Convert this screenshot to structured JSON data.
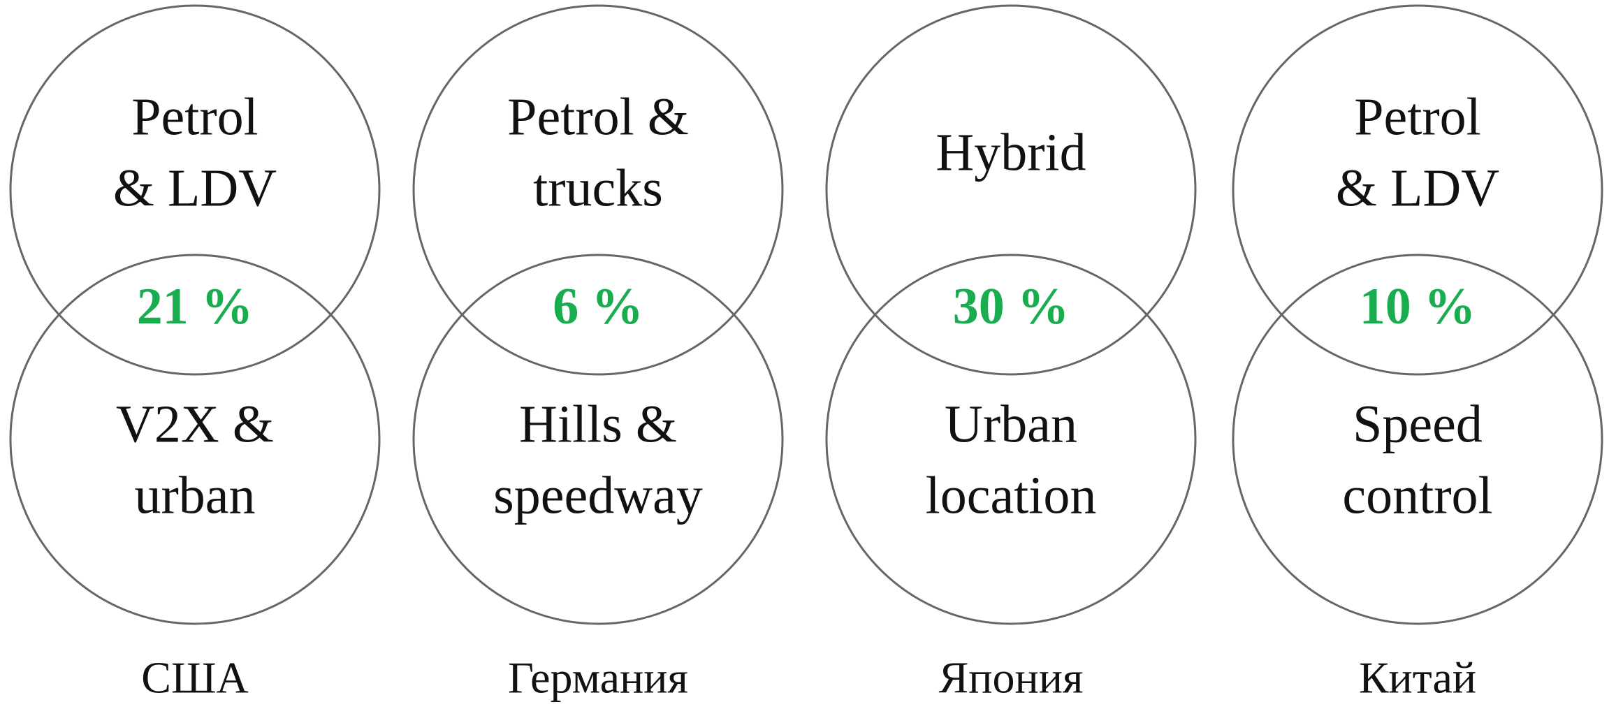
{
  "groups": [
    {
      "top": [
        "Petrol",
        "& LDV"
      ],
      "overlap": "21 %",
      "bottom": [
        "V2X &",
        "urban"
      ],
      "country": "США"
    },
    {
      "top": [
        "Petrol &",
        "trucks"
      ],
      "overlap": "6 %",
      "bottom": [
        "Hills &",
        "speedway"
      ],
      "country": "Германия"
    },
    {
      "top": [
        "Hybrid"
      ],
      "overlap": "30 %",
      "bottom": [
        "Urban",
        "location"
      ],
      "country": "Япония"
    },
    {
      "top": [
        "Petrol",
        "& LDV"
      ],
      "overlap": "10 %",
      "bottom": [
        "Speed",
        "control"
      ],
      "country": "Китай"
    }
  ]
}
